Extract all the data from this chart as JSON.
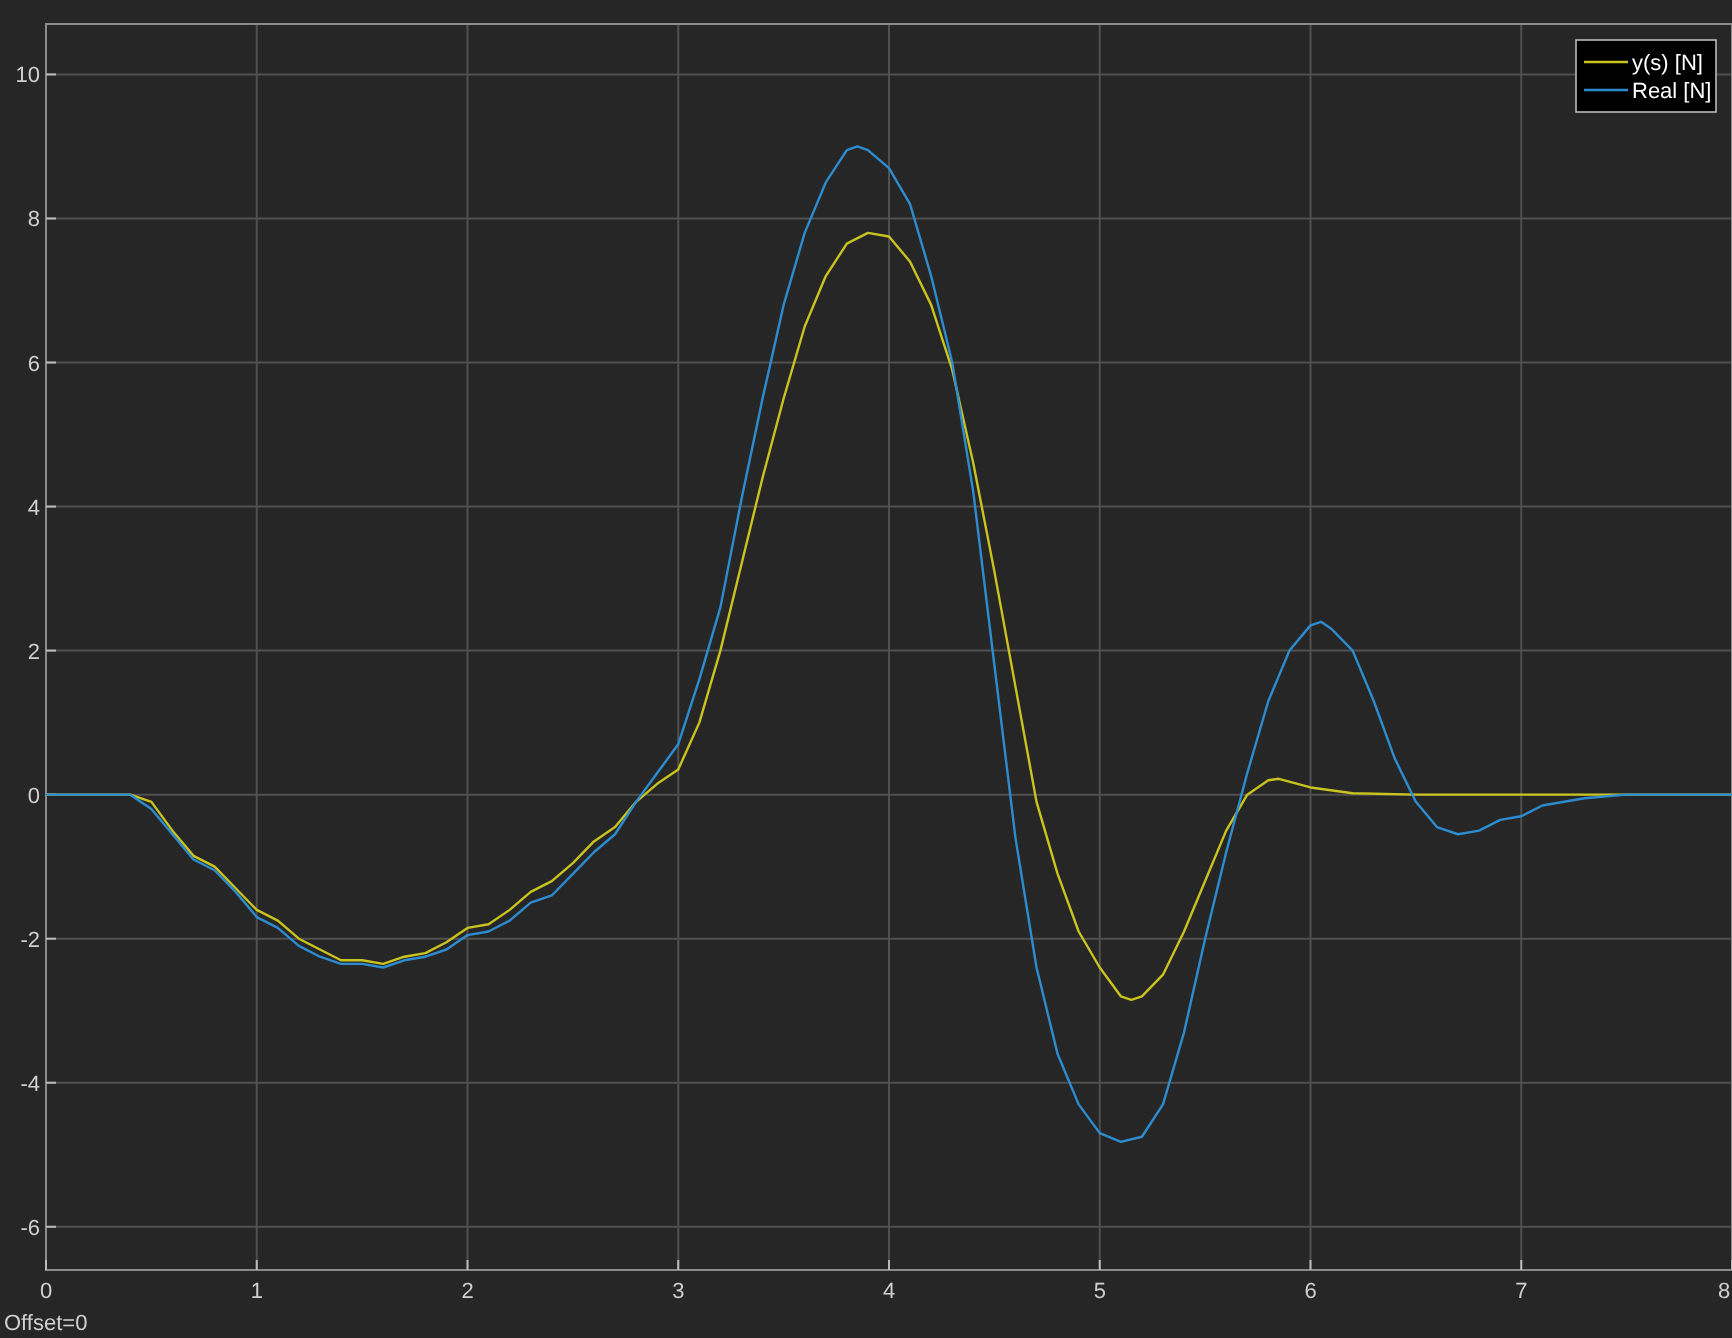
{
  "chart_data": {
    "type": "line",
    "xlim": [
      0,
      8
    ],
    "ylim": [
      -6.6,
      10.7
    ],
    "xticks": [
      0,
      1,
      2,
      3,
      4,
      5,
      6,
      7,
      8
    ],
    "yticks": [
      -6,
      -4,
      -2,
      0,
      2,
      4,
      6,
      8,
      10
    ],
    "grid": true,
    "legend": "top right",
    "annotations": [
      "Offset=0"
    ],
    "series": [
      {
        "name": "y(s) [N]",
        "color": "#c9c31e",
        "x": [
          0,
          0.4,
          0.5,
          0.6,
          0.7,
          0.8,
          0.9,
          1.0,
          1.1,
          1.2,
          1.3,
          1.4,
          1.5,
          1.6,
          1.7,
          1.8,
          1.9,
          2.0,
          2.1,
          2.2,
          2.3,
          2.4,
          2.5,
          2.6,
          2.7,
          2.8,
          2.9,
          3.0,
          3.1,
          3.2,
          3.3,
          3.4,
          3.5,
          3.6,
          3.7,
          3.8,
          3.9,
          4.0,
          4.1,
          4.2,
          4.3,
          4.4,
          4.5,
          4.6,
          4.7,
          4.8,
          4.9,
          5.0,
          5.1,
          5.15,
          5.2,
          5.3,
          5.4,
          5.5,
          5.6,
          5.7,
          5.8,
          5.85,
          6.0,
          6.2,
          6.5,
          8
        ],
        "values": [
          0,
          0,
          -0.1,
          -0.5,
          -0.85,
          -1.0,
          -1.3,
          -1.6,
          -1.75,
          -2.0,
          -2.15,
          -2.3,
          -2.3,
          -2.35,
          -2.25,
          -2.2,
          -2.05,
          -1.85,
          -1.8,
          -1.6,
          -1.35,
          -1.2,
          -0.95,
          -0.65,
          -0.45,
          -0.1,
          0.15,
          0.35,
          1.0,
          2.0,
          3.2,
          4.4,
          5.5,
          6.5,
          7.2,
          7.65,
          7.8,
          7.75,
          7.4,
          6.8,
          5.9,
          4.6,
          3.1,
          1.5,
          -0.1,
          -1.1,
          -1.9,
          -2.4,
          -2.8,
          -2.85,
          -2.8,
          -2.5,
          -1.9,
          -1.2,
          -0.5,
          0.0,
          0.2,
          0.22,
          0.1,
          0.02,
          0,
          0
        ]
      },
      {
        "name": "Real [N]",
        "color": "#2d8ccf",
        "x": [
          0,
          0.4,
          0.5,
          0.6,
          0.7,
          0.8,
          0.9,
          1.0,
          1.1,
          1.2,
          1.3,
          1.4,
          1.5,
          1.6,
          1.7,
          1.8,
          1.9,
          2.0,
          2.1,
          2.2,
          2.3,
          2.4,
          2.5,
          2.6,
          2.7,
          2.8,
          2.9,
          3.0,
          3.1,
          3.2,
          3.3,
          3.4,
          3.5,
          3.6,
          3.7,
          3.8,
          3.85,
          3.9,
          4.0,
          4.1,
          4.2,
          4.3,
          4.4,
          4.5,
          4.6,
          4.7,
          4.8,
          4.9,
          5.0,
          5.1,
          5.2,
          5.3,
          5.4,
          5.5,
          5.6,
          5.7,
          5.8,
          5.9,
          6.0,
          6.05,
          6.1,
          6.2,
          6.3,
          6.4,
          6.5,
          6.6,
          6.7,
          6.8,
          6.9,
          7.0,
          7.1,
          7.3,
          7.5,
          8
        ],
        "values": [
          0,
          0,
          -0.2,
          -0.55,
          -0.9,
          -1.05,
          -1.35,
          -1.7,
          -1.85,
          -2.1,
          -2.25,
          -2.35,
          -2.35,
          -2.4,
          -2.3,
          -2.25,
          -2.15,
          -1.95,
          -1.9,
          -1.75,
          -1.5,
          -1.4,
          -1.1,
          -0.8,
          -0.55,
          -0.1,
          0.3,
          0.7,
          1.6,
          2.6,
          4.1,
          5.5,
          6.8,
          7.8,
          8.5,
          8.95,
          9.0,
          8.95,
          8.7,
          8.2,
          7.2,
          6.0,
          4.2,
          1.8,
          -0.6,
          -2.4,
          -3.6,
          -4.3,
          -4.7,
          -4.82,
          -4.75,
          -4.3,
          -3.3,
          -2.0,
          -0.8,
          0.3,
          1.3,
          2.0,
          2.35,
          2.4,
          2.3,
          2.0,
          1.3,
          0.5,
          -0.1,
          -0.45,
          -0.55,
          -0.5,
          -0.35,
          -0.3,
          -0.15,
          -0.05,
          0,
          0
        ]
      }
    ]
  }
}
